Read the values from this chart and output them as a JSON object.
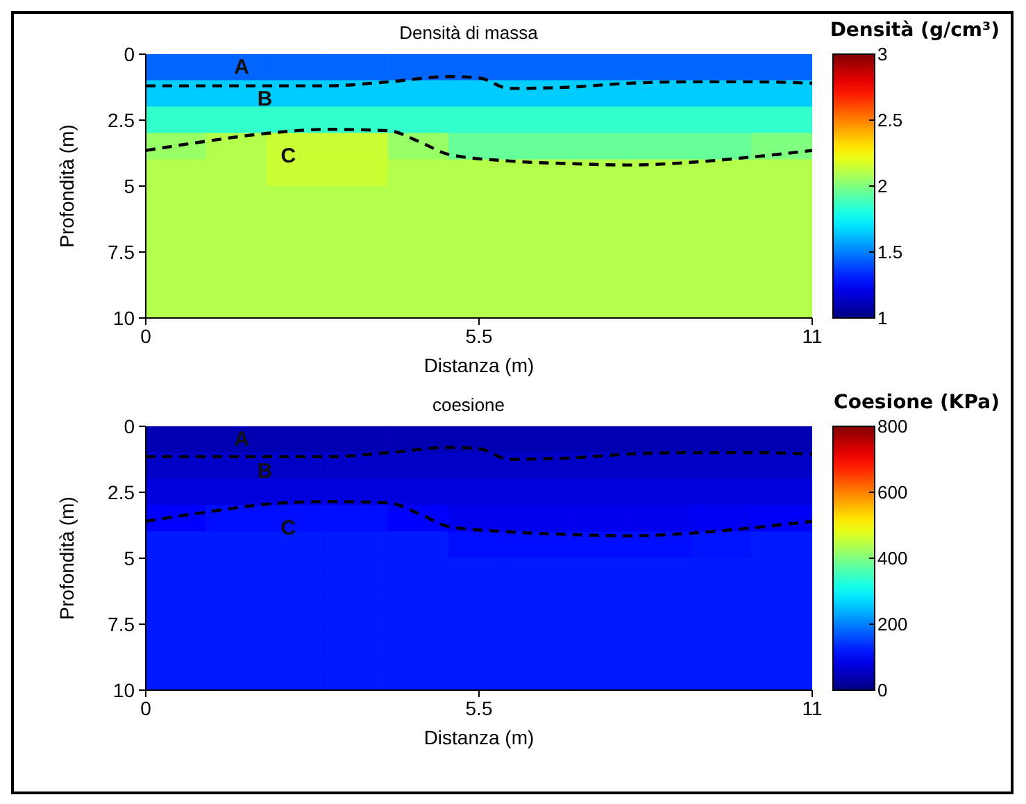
{
  "chart_data": [
    {
      "type": "heatmap",
      "title": "Densità di massa",
      "xlabel": "Distanza (m)",
      "ylabel": "Profondità (m)",
      "clabel": "Densità (g/cm³)",
      "cells": [
        [
          1.45,
          1.45,
          1.45,
          1.45,
          1.45,
          1.45,
          1.45,
          1.45,
          1.45,
          1.45,
          1.45
        ],
        [
          1.65,
          1.65,
          1.65,
          1.65,
          1.65,
          1.65,
          1.65,
          1.65,
          1.65,
          1.65,
          1.65
        ],
        [
          1.85,
          1.85,
          1.85,
          1.85,
          1.85,
          1.85,
          1.85,
          1.85,
          1.85,
          1.85,
          1.85
        ],
        [
          2.05,
          2.1,
          2.15,
          2.15,
          2.05,
          1.95,
          1.95,
          1.95,
          1.95,
          1.95,
          2.0
        ],
        [
          2.1,
          2.1,
          2.15,
          2.15,
          2.1,
          2.1,
          2.1,
          2.1,
          2.1,
          2.1,
          2.1
        ],
        [
          2.1,
          2.1,
          2.1,
          2.1,
          2.1,
          2.1,
          2.1,
          2.1,
          2.1,
          2.1,
          2.1
        ],
        [
          2.1,
          2.1,
          2.1,
          2.1,
          2.1,
          2.1,
          2.1,
          2.1,
          2.1,
          2.1,
          2.1
        ],
        [
          2.1,
          2.1,
          2.1,
          2.1,
          2.1,
          2.1,
          2.1,
          2.1,
          2.1,
          2.1,
          2.1
        ],
        [
          2.1,
          2.1,
          2.1,
          2.1,
          2.1,
          2.1,
          2.1,
          2.1,
          2.1,
          2.1,
          2.1
        ],
        [
          2.1,
          2.1,
          2.1,
          2.1,
          2.1,
          2.1,
          2.1,
          2.1,
          2.1,
          2.1,
          2.1
        ]
      ],
      "clim": [
        1,
        3
      ],
      "cticks": [
        1,
        1.5,
        2,
        2.5,
        3
      ],
      "xlim": [
        0,
        11
      ],
      "xticks": [
        0,
        5.5,
        11
      ],
      "ylim": [
        10,
        0
      ],
      "yticks": [
        0,
        2.5,
        5,
        7.5,
        10
      ],
      "series": [
        {
          "type": "line",
          "color": "#000000",
          "line_style": "dashed",
          "x": [
            0,
            1,
            2,
            3,
            4,
            5,
            5.5,
            6,
            7,
            8,
            9,
            10,
            11
          ],
          "values": [
            1.2,
            1.2,
            1.2,
            1.2,
            1.05,
            0.85,
            0.9,
            1.3,
            1.25,
            1.1,
            1.05,
            1.05,
            1.1
          ]
        },
        {
          "type": "line",
          "color": "#000000",
          "line_style": "dashed",
          "x": [
            0,
            1,
            2,
            3,
            4,
            4.5,
            5,
            6,
            7,
            8,
            9,
            10,
            11
          ],
          "values": [
            3.65,
            3.3,
            3.0,
            2.85,
            2.9,
            3.3,
            3.8,
            4.05,
            4.15,
            4.2,
            4.1,
            3.9,
            3.65
          ]
        }
      ],
      "annotations": [
        "A",
        "B",
        "C"
      ]
    },
    {
      "type": "heatmap",
      "title": "coesione",
      "xlabel": "Distanza (m)",
      "ylabel": "Profondità (m)",
      "clabel": "Coesione (KPa)",
      "cells": [
        [
          40,
          40,
          40,
          40,
          40,
          40,
          40,
          40,
          40,
          40,
          40
        ],
        [
          55,
          55,
          55,
          55,
          55,
          55,
          55,
          55,
          55,
          55,
          55
        ],
        [
          75,
          75,
          75,
          75,
          75,
          75,
          75,
          75,
          75,
          75,
          75
        ],
        [
          100,
          110,
          110,
          110,
          100,
          85,
          85,
          85,
          85,
          90,
          95
        ],
        [
          120,
          120,
          120,
          120,
          120,
          110,
          110,
          110,
          110,
          115,
          120
        ],
        [
          120,
          120,
          120,
          120,
          120,
          120,
          120,
          120,
          120,
          120,
          120
        ],
        [
          120,
          120,
          120,
          120,
          120,
          120,
          120,
          120,
          120,
          120,
          120
        ],
        [
          120,
          120,
          120,
          120,
          120,
          120,
          120,
          120,
          120,
          120,
          120
        ],
        [
          120,
          120,
          120,
          120,
          120,
          120,
          120,
          120,
          120,
          120,
          120
        ],
        [
          120,
          120,
          120,
          120,
          120,
          120,
          120,
          120,
          120,
          120,
          120
        ]
      ],
      "clim": [
        0,
        800
      ],
      "cticks": [
        0,
        200,
        400,
        600,
        800
      ],
      "xlim": [
        0,
        11
      ],
      "xticks": [
        0,
        5.5,
        11
      ],
      "ylim": [
        10,
        0
      ],
      "yticks": [
        0,
        2.5,
        5,
        7.5,
        10
      ],
      "series": [
        {
          "type": "line",
          "color": "#000000",
          "line_style": "dashed",
          "x": [
            0,
            1,
            2,
            3,
            4,
            5,
            5.5,
            6,
            7,
            8,
            9,
            10,
            11
          ],
          "values": [
            1.15,
            1.15,
            1.15,
            1.15,
            1.0,
            0.8,
            0.85,
            1.25,
            1.2,
            1.05,
            1.0,
            1.0,
            1.05
          ]
        },
        {
          "type": "line",
          "color": "#000000",
          "line_style": "dashed",
          "x": [
            0,
            1,
            2,
            3,
            4,
            4.5,
            5,
            6,
            7,
            8,
            9,
            10,
            11
          ],
          "values": [
            3.6,
            3.25,
            2.95,
            2.85,
            2.9,
            3.3,
            3.8,
            4.0,
            4.1,
            4.15,
            4.05,
            3.85,
            3.6
          ]
        }
      ],
      "annotations": [
        "A",
        "B",
        "C"
      ]
    }
  ]
}
